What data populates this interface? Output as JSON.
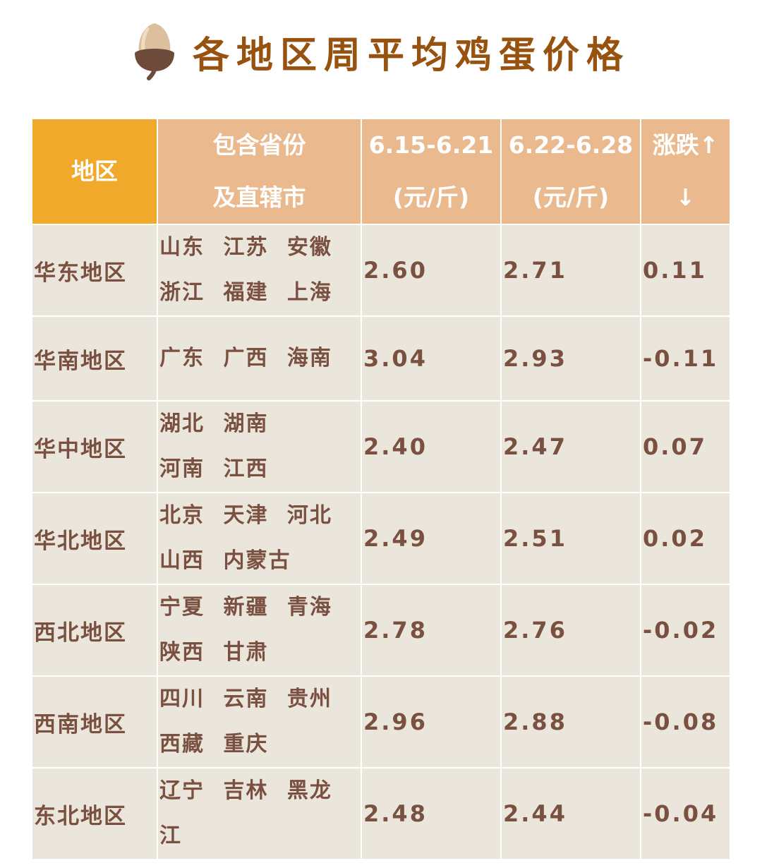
{
  "title": "各地区周平均鸡蛋价格",
  "title_icon": "acorn-icon",
  "colors": {
    "title": "#97520f",
    "header_region": "#f1a92b",
    "header": "#eab98e",
    "cell": "#ebe6dc",
    "cell_text": "#7a5040"
  },
  "headers": [
    {
      "line1": "地区",
      "line2": ""
    },
    {
      "line1": "包含省份",
      "line2": "及直辖市"
    },
    {
      "line1": "6.15-6.21",
      "line2": "(元/斤)"
    },
    {
      "line1": "6.22-6.28",
      "line2": "(元/斤)"
    },
    {
      "line1": "涨跌↑",
      "line2": "↓"
    }
  ],
  "rows": [
    {
      "region": "华东地区",
      "provinces1": "山东 江苏 安徽",
      "provinces2": "浙江 福建 上海",
      "prev": "2.60",
      "curr": "2.71",
      "change": "0.11"
    },
    {
      "region": "华南地区",
      "provinces1": "广东 广西 海南",
      "provinces2": "",
      "prev": "3.04",
      "curr": "2.93",
      "change": "-0.11"
    },
    {
      "region": "华中地区",
      "provinces1": "湖北 湖南",
      "provinces2": "河南 江西",
      "prev": "2.40",
      "curr": "2.47",
      "change": "0.07"
    },
    {
      "region": "华北地区",
      "provinces1": "北京 天津 河北",
      "provinces2": "山西 内蒙古",
      "prev": "2.49",
      "curr": "2.51",
      "change": "0.02"
    },
    {
      "region": "西北地区",
      "provinces1": "宁夏 新疆 青海",
      "provinces2": "陕西 甘肃",
      "prev": "2.78",
      "curr": "2.76",
      "change": "-0.02"
    },
    {
      "region": "西南地区",
      "provinces1": "四川 云南 贵州",
      "provinces2": "西藏 重庆",
      "prev": "2.96",
      "curr": "2.88",
      "change": "-0.08"
    },
    {
      "region": "东北地区",
      "provinces1": "辽宁 吉林 黑龙",
      "provinces2": "江",
      "prev": "2.48",
      "curr": "2.44",
      "change": "-0.04"
    }
  ]
}
